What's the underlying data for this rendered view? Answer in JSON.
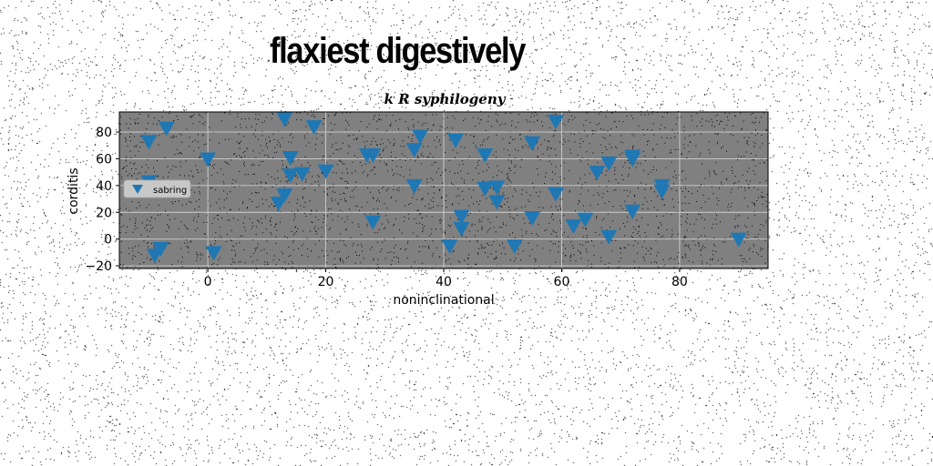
{
  "figure": {
    "title": "flaxiest digestively"
  },
  "chart_data": {
    "type": "scatter",
    "title": "k R syphilogeny",
    "xlabel": "noninclinational",
    "ylabel": "corditis",
    "xlim": [
      -15,
      95
    ],
    "ylim": [
      -22,
      95
    ],
    "x_ticks": [
      0,
      20,
      40,
      60,
      80
    ],
    "y_ticks": [
      -20,
      0,
      20,
      40,
      60,
      80
    ],
    "grid": true,
    "background_color": "#808080",
    "legend_placement": "center-left",
    "series": [
      {
        "name": "sabring",
        "marker": "triangle-down",
        "color": "#1f77b4",
        "points": [
          [
            -10,
            73
          ],
          [
            -7,
            83
          ],
          [
            -10,
            43
          ],
          [
            -9,
            -12
          ],
          [
            -8,
            -7
          ],
          [
            1,
            -10
          ],
          [
            0,
            60
          ],
          [
            12,
            27
          ],
          [
            13,
            33
          ],
          [
            13,
            90
          ],
          [
            14,
            61
          ],
          [
            14,
            48
          ],
          [
            16,
            49
          ],
          [
            18,
            84
          ],
          [
            20,
            51
          ],
          [
            27,
            63
          ],
          [
            28,
            63
          ],
          [
            28,
            13
          ],
          [
            35,
            67
          ],
          [
            35,
            40
          ],
          [
            36,
            77
          ],
          [
            41,
            -5
          ],
          [
            42,
            74
          ],
          [
            43,
            17
          ],
          [
            43,
            8
          ],
          [
            47,
            63
          ],
          [
            47,
            38
          ],
          [
            49,
            39
          ],
          [
            49,
            28
          ],
          [
            52,
            -5
          ],
          [
            55,
            72
          ],
          [
            55,
            16
          ],
          [
            59,
            88
          ],
          [
            59,
            34
          ],
          [
            62,
            10
          ],
          [
            64,
            15
          ],
          [
            66,
            50
          ],
          [
            68,
            2
          ],
          [
            68,
            57
          ],
          [
            72,
            62
          ],
          [
            72,
            60
          ],
          [
            72,
            21
          ],
          [
            77,
            40
          ],
          [
            77,
            36
          ],
          [
            90,
            0
          ]
        ]
      }
    ]
  }
}
